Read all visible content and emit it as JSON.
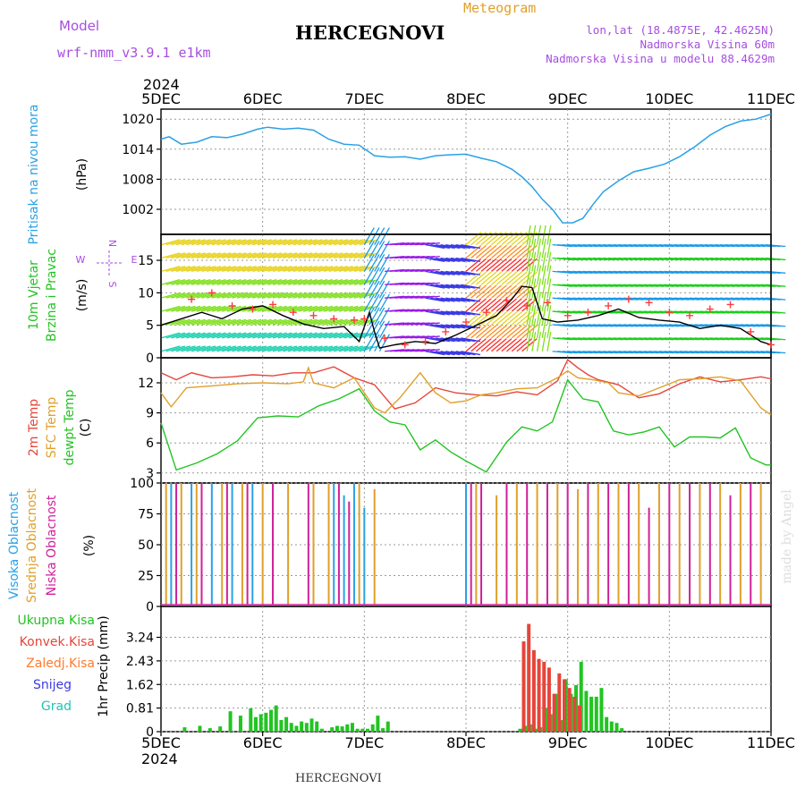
{
  "header": {
    "model_label": "Model",
    "model_name": "wrf-nmm_v3.9.1 e1km",
    "title": "HERCEGNOVI",
    "subtitle": "Meteogram",
    "coords": "lon,lat (18.4875E, 42.4625N)",
    "elev_station": "Nadmorska Visina 60m",
    "elev_model": "Nadmorska Visina u modelu 88.4629m"
  },
  "footer": {
    "station": "HERCEGNOVI",
    "credit": "made by Angel"
  },
  "time_axis": {
    "year": "2024",
    "ticks": [
      "5DEC",
      "6DEC",
      "7DEC",
      "8DEC",
      "9DEC",
      "10DEC",
      "11DEC"
    ]
  },
  "colors": {
    "pressure": "#2aa1e6",
    "wind_speed": "#000000",
    "gust": "#ff3b3b",
    "t2m": "#e6453a",
    "tsfc": "#e0a02a",
    "dewpt": "#22c422",
    "cloud_high": "#2aa1e6",
    "cloud_mid": "#e0a02a",
    "cloud_low": "#d0209a",
    "precip_total": "#22c422",
    "precip_conv": "#e6453a",
    "label_purple": "#a64ee0"
  },
  "chart_data": [
    {
      "type": "line",
      "name": "pressure",
      "ylabel": "Pritisak na nivou mora",
      "unit": "(hPa)",
      "yticks": [
        1002,
        1008,
        1014,
        1020
      ],
      "ylim": [
        997,
        1022
      ],
      "x": [
        0,
        0.08,
        0.2,
        0.35,
        0.5,
        0.65,
        0.8,
        0.95,
        1.05,
        1.2,
        1.35,
        1.5,
        1.65,
        1.8,
        1.95,
        2.1,
        2.25,
        2.4,
        2.55,
        2.7,
        2.85,
        3.0,
        3.15,
        3.3,
        3.45,
        3.55,
        3.65,
        3.75,
        3.85,
        3.95,
        4.05,
        4.15,
        4.25,
        4.35,
        4.5,
        4.65,
        4.8,
        4.95,
        5.1,
        5.25,
        5.4,
        5.55,
        5.7,
        5.85,
        6.0
      ],
      "values": [
        1016,
        1016.5,
        1015,
        1015.4,
        1016.5,
        1016.3,
        1017,
        1018,
        1018.4,
        1018,
        1018.2,
        1017.8,
        1016,
        1015,
        1014.8,
        1012.7,
        1012.4,
        1012.5,
        1012,
        1012.7,
        1012.9,
        1013,
        1012.2,
        1011.5,
        1010,
        1008.5,
        1006.5,
        1004,
        1002,
        999.3,
        999.3,
        1000.2,
        1003,
        1005.5,
        1007.7,
        1009.5,
        1010.2,
        1011,
        1012.5,
        1014.5,
        1016.8,
        1018.5,
        1019.6,
        1020,
        1021
      ]
    },
    {
      "type": "line",
      "name": "wind",
      "ylabel": "10m Vjetar Brzina i Pravac",
      "unit": "(m/s)",
      "compass": [
        "N",
        "E",
        "S",
        "W"
      ],
      "yticks": [
        0,
        5,
        10,
        15
      ],
      "ylim": [
        0,
        19
      ],
      "x": [
        0,
        0.2,
        0.4,
        0.6,
        0.8,
        1.0,
        1.2,
        1.4,
        1.6,
        1.8,
        1.95,
        2.05,
        2.1,
        2.15,
        2.3,
        2.5,
        2.7,
        2.9,
        3.1,
        3.3,
        3.45,
        3.55,
        3.65,
        3.75,
        3.9,
        4.1,
        4.3,
        4.5,
        4.7,
        4.9,
        5.1,
        5.3,
        5.5,
        5.7,
        5.9,
        6.0
      ],
      "values": [
        5,
        6,
        7,
        6,
        7.5,
        8,
        6.5,
        5.2,
        4.5,
        4.8,
        2.5,
        7,
        4,
        1.5,
        2,
        2.5,
        2.2,
        3.5,
        5,
        6.5,
        9,
        11,
        10.8,
        6,
        5.5,
        5.8,
        6.5,
        7.5,
        6.2,
        5.8,
        5.5,
        4.5,
        5,
        4.5,
        2.5,
        2
      ],
      "gust_x": [
        0.3,
        0.5,
        0.7,
        0.9,
        1.1,
        1.3,
        1.5,
        1.7,
        1.9,
        2.0,
        2.2,
        2.4,
        2.6,
        2.8,
        3.0,
        3.2,
        3.4,
        3.6,
        3.8,
        4.0,
        4.2,
        4.4,
        4.6,
        4.8,
        5.0,
        5.2,
        5.4,
        5.6,
        5.8,
        6.0
      ],
      "gust_values": [
        9,
        10,
        8,
        7.5,
        8.2,
        7,
        6.5,
        6,
        5.8,
        6,
        3,
        2,
        2.5,
        4,
        5.5,
        7,
        8.8,
        8,
        8.5,
        6.5,
        7,
        8,
        9,
        8.5,
        7,
        6.5,
        7.5,
        8.2,
        4,
        2
      ]
    },
    {
      "type": "line",
      "name": "temperature",
      "ylabel": "2m Temp SFC Temp dewpt Temp",
      "unit": "(C)",
      "yticks": [
        3,
        6,
        9,
        12
      ],
      "ylim": [
        2,
        14.5
      ],
      "series": [
        {
          "name": "2m Temp",
          "x": [
            0,
            0.15,
            0.3,
            0.5,
            0.7,
            0.9,
            1.1,
            1.3,
            1.5,
            1.7,
            1.9,
            2.1,
            2.3,
            2.5,
            2.7,
            2.9,
            3.1,
            3.3,
            3.5,
            3.7,
            3.9,
            4.0,
            4.1,
            4.2,
            4.3,
            4.5,
            4.7,
            4.9,
            5.1,
            5.3,
            5.5,
            5.7,
            5.9,
            6.0
          ],
          "values": [
            13,
            12.3,
            13,
            12.5,
            12.6,
            12.8,
            12.7,
            13,
            13,
            13.6,
            12.5,
            11.8,
            9.4,
            10,
            11.5,
            11,
            10.8,
            10.7,
            11.1,
            10.8,
            12.2,
            14.3,
            13.5,
            12.8,
            12.3,
            11.8,
            10.5,
            10.9,
            11.9,
            12.6,
            12.1,
            12.3,
            12.6,
            12.4
          ]
        },
        {
          "name": "SFC Temp",
          "x": [
            0,
            0.1,
            0.25,
            0.5,
            0.75,
            1.0,
            1.25,
            1.4,
            1.45,
            1.5,
            1.7,
            1.9,
            2.1,
            2.2,
            2.35,
            2.55,
            2.7,
            2.85,
            3.0,
            3.15,
            3.3,
            3.5,
            3.7,
            3.9,
            4.0,
            4.1,
            4.25,
            4.4,
            4.5,
            4.7,
            4.9,
            5.1,
            5.3,
            5.5,
            5.7,
            5.9,
            6.0
          ],
          "values": [
            11,
            9.6,
            11.5,
            11.7,
            11.9,
            12,
            11.9,
            12.1,
            13.5,
            12,
            11.5,
            12.5,
            9.5,
            9,
            10.5,
            13,
            11,
            10,
            10.2,
            10.8,
            11,
            11.4,
            11.5,
            12.5,
            13.2,
            12.5,
            12.3,
            12,
            11,
            10.7,
            11.5,
            12.3,
            12.4,
            12.6,
            12.2,
            9.5,
            8.8
          ]
        },
        {
          "name": "dewpt Temp",
          "x": [
            0,
            0.15,
            0.35,
            0.55,
            0.75,
            0.95,
            1.15,
            1.35,
            1.55,
            1.75,
            1.95,
            2.1,
            2.25,
            2.4,
            2.55,
            2.7,
            2.85,
            3.0,
            3.2,
            3.4,
            3.55,
            3.7,
            3.85,
            4.0,
            4.15,
            4.3,
            4.45,
            4.6,
            4.75,
            4.9,
            5.05,
            5.2,
            5.35,
            5.5,
            5.65,
            5.8,
            5.95,
            6.0
          ],
          "values": [
            8,
            3.3,
            4,
            4.9,
            6.2,
            8.5,
            8.7,
            8.6,
            9.7,
            10.4,
            11.4,
            9.2,
            8.1,
            7.8,
            5.3,
            6.3,
            5.1,
            4.2,
            3.1,
            6.1,
            7.6,
            7.2,
            8.1,
            12.3,
            10.4,
            10.1,
            7.2,
            6.8,
            7.1,
            7.6,
            5.6,
            6.6,
            6.6,
            6.5,
            7.5,
            4.5,
            3.8,
            3.8
          ]
        }
      ]
    },
    {
      "type": "bar",
      "name": "clouds",
      "ylabel": "Visoka Oblacnost Srednja Oblacnost Niska Oblacnost",
      "unit": "(%)",
      "yticks": [
        0,
        25,
        50,
        75,
        100
      ],
      "ylim": [
        0,
        100
      ],
      "series": [
        {
          "name": "Visoka Oblacnost",
          "x": [
            0.1,
            0.3,
            0.5,
            0.7,
            0.9,
            1.7,
            1.8,
            1.9,
            2.0,
            3.0
          ],
          "values": [
            100,
            100,
            100,
            100,
            100,
            100,
            90,
            100,
            80,
            100
          ]
        },
        {
          "name": "Srednja Oblacnost",
          "x": [
            0.05,
            0.2,
            0.35,
            0.6,
            0.8,
            1.0,
            1.25,
            1.5,
            1.65,
            1.95,
            2.1,
            3.1,
            3.3,
            3.5,
            3.7,
            3.9,
            4.1,
            4.3,
            4.5,
            4.7,
            4.9,
            5.1,
            5.3,
            5.5,
            5.7,
            5.9
          ],
          "values": [
            100,
            100,
            100,
            100,
            100,
            100,
            100,
            100,
            100,
            100,
            95,
            100,
            90,
            100,
            100,
            100,
            95,
            100,
            100,
            100,
            100,
            100,
            100,
            100,
            100,
            100
          ]
        },
        {
          "name": "Niska Oblacnost",
          "x": [
            0.15,
            0.4,
            0.65,
            0.85,
            1.1,
            1.45,
            1.75,
            1.85,
            3.05,
            3.15,
            3.4,
            3.6,
            3.8,
            4.0,
            4.2,
            4.4,
            4.6,
            4.8,
            5.0,
            5.2,
            5.4,
            5.6,
            5.8
          ],
          "values": [
            100,
            100,
            100,
            100,
            100,
            100,
            100,
            85,
            100,
            100,
            100,
            100,
            100,
            100,
            100,
            100,
            100,
            80,
            100,
            100,
            100,
            90,
            100
          ]
        }
      ]
    },
    {
      "type": "bar",
      "name": "precipitation",
      "ylabel": "1hr Precip",
      "unit": "(mm)",
      "legend": [
        "Ukupna Kisa",
        "Konvek.Kisa",
        "Zaledj.Kisa",
        "Snijeg",
        "Grad"
      ],
      "yticks": [
        0,
        0.81,
        1.62,
        2.43,
        3.24
      ],
      "ylim": [
        0,
        4.3
      ],
      "series": [
        {
          "name": "Ukupna Kisa",
          "x": [
            0.25,
            0.4,
            0.5,
            0.6,
            0.7,
            0.8,
            0.9,
            0.95,
            1.0,
            1.05,
            1.1,
            1.15,
            1.2,
            1.25,
            1.3,
            1.35,
            1.4,
            1.45,
            1.5,
            1.55,
            1.6,
            1.7,
            1.75,
            1.8,
            1.85,
            1.9,
            1.95,
            2.0,
            2.05,
            2.1,
            2.15,
            2.2,
            2.25,
            3.55,
            3.6,
            3.65,
            3.7,
            3.75,
            3.8,
            3.85,
            3.9,
            3.95,
            4.0,
            4.05,
            4.1,
            4.15,
            4.2,
            4.25,
            4.3,
            4.35,
            4.4,
            4.45,
            4.5,
            4.55
          ],
          "values": [
            0.15,
            0.2,
            0.12,
            0.18,
            0.7,
            0.55,
            0.8,
            0.5,
            0.6,
            0.65,
            0.75,
            0.9,
            0.4,
            0.5,
            0.3,
            0.2,
            0.35,
            0.3,
            0.45,
            0.35,
            0.1,
            0.15,
            0.2,
            0.18,
            0.25,
            0.3,
            0.1,
            0.1,
            0.1,
            0.25,
            0.55,
            0.12,
            0.35,
            0.1,
            0.2,
            0.25,
            0.1,
            0.15,
            0.8,
            0.6,
            1.3,
            0.4,
            1.8,
            1.3,
            1.6,
            2.4,
            1.4,
            1.2,
            1.2,
            1.5,
            0.5,
            0.35,
            0.3,
            0.12
          ]
        },
        {
          "name": "Konvek.Kisa",
          "x": [
            3.55,
            3.6,
            3.65,
            3.7,
            3.75,
            3.8,
            3.85,
            3.9,
            3.95,
            4.0,
            4.05,
            4.1
          ],
          "values": [
            3.1,
            3.7,
            2.8,
            2.5,
            2.4,
            2.2,
            1.3,
            2.0,
            1.8,
            1.5,
            1.2,
            0.9
          ]
        }
      ]
    }
  ]
}
